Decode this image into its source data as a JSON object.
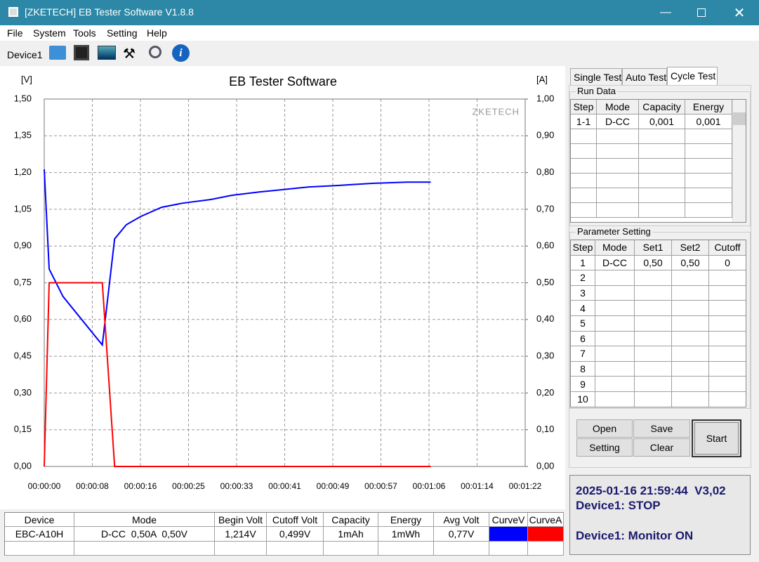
{
  "window": {
    "title": "[ZKETECH] EB Tester Software V1.8.8"
  },
  "menu": [
    "File",
    "System",
    "Tools",
    "Setting",
    "Help"
  ],
  "toolbar": {
    "device": "Device1"
  },
  "chart_data": {
    "type": "line",
    "title": "EB Tester Software",
    "ylabel": "[V]",
    "y2label": "[A]",
    "watermark": "ZKETECH",
    "xlim": [
      0,
      82
    ],
    "xticks": [
      {
        "value": 0,
        "label": "00:00:00"
      },
      {
        "value": 8.2,
        "label": "00:00:08"
      },
      {
        "value": 16.4,
        "label": "00:00:16"
      },
      {
        "value": 24.6,
        "label": "00:00:25"
      },
      {
        "value": 32.8,
        "label": "00:00:33"
      },
      {
        "value": 41,
        "label": "00:00:41"
      },
      {
        "value": 49.2,
        "label": "00:00:49"
      },
      {
        "value": 57.4,
        "label": "00:00:57"
      },
      {
        "value": 65.6,
        "label": "00:01:06"
      },
      {
        "value": 73.8,
        "label": "00:01:14"
      },
      {
        "value": 82,
        "label": "00:01:22"
      }
    ],
    "ylim": [
      0,
      1.5
    ],
    "yticks": [
      {
        "value": 0,
        "label": "0,00"
      },
      {
        "value": 0.15,
        "label": "0,15"
      },
      {
        "value": 0.3,
        "label": "0,30"
      },
      {
        "value": 0.45,
        "label": "0,45"
      },
      {
        "value": 0.6,
        "label": "0,60"
      },
      {
        "value": 0.75,
        "label": "0,75"
      },
      {
        "value": 0.9,
        "label": "0,90"
      },
      {
        "value": 1.05,
        "label": "1,05"
      },
      {
        "value": 1.2,
        "label": "1,20"
      },
      {
        "value": 1.35,
        "label": "1,35"
      },
      {
        "value": 1.5,
        "label": "1,50"
      }
    ],
    "y2lim": [
      0,
      1
    ],
    "y2ticks": [
      {
        "value": 0,
        "label": "0,00"
      },
      {
        "value": 0.1,
        "label": "0,10"
      },
      {
        "value": 0.2,
        "label": "0,20"
      },
      {
        "value": 0.3,
        "label": "0,30"
      },
      {
        "value": 0.4,
        "label": "0,40"
      },
      {
        "value": 0.5,
        "label": "0,50"
      },
      {
        "value": 0.6,
        "label": "0,60"
      },
      {
        "value": 0.7,
        "label": "0,70"
      },
      {
        "value": 0.8,
        "label": "0,80"
      },
      {
        "value": 0.9,
        "label": "0,90"
      },
      {
        "value": 1,
        "label": "1,00"
      }
    ],
    "grid": true,
    "series": [
      {
        "color": "#0000ff",
        "x": [
          0,
          0.84,
          3.2,
          9.9,
          12,
          14,
          16.4,
          20,
          23.6,
          28.4,
          32,
          36.8,
          45.1,
          49.9,
          55.9,
          61.9,
          65.9
        ],
        "values": [
          1.213,
          0.806,
          0.694,
          0.496,
          0.929,
          0.987,
          1.02,
          1.058,
          1.075,
          1.09,
          1.107,
          1.121,
          1.141,
          1.147,
          1.156,
          1.161,
          1.161
        ]
      },
      {
        "color": "#ff0000",
        "axis": "y2",
        "x": [
          0,
          0.84,
          9.9,
          12,
          65.9
        ],
        "values": [
          0,
          0.5,
          0.5,
          0,
          0
        ]
      }
    ]
  },
  "results": {
    "headers": [
      "Device",
      "Mode",
      "Begin Volt",
      "Cutoff Volt",
      "Capacity",
      "Energy",
      "Avg Volt",
      "CurveV",
      "CurveA"
    ],
    "row": [
      "EBC-A10H",
      "D-CC  0,50A  0,50V",
      "1,214V",
      "0,499V",
      "1mAh",
      "1mWh",
      "0,77V"
    ]
  },
  "tabs": [
    "Single Test",
    "Auto Test",
    "Cycle Test"
  ],
  "run_data": {
    "title": "Run Data",
    "headers": [
      "Step",
      "Mode",
      "Capacity",
      "Energy"
    ],
    "rows": [
      [
        "1-1",
        "D-CC",
        "0,001",
        "0,001"
      ]
    ]
  },
  "parameter_setting": {
    "title": "Parameter Setting",
    "headers": [
      "Step",
      "Mode",
      "Set1",
      "Set2",
      "Cutoff"
    ],
    "rows": [
      [
        "1",
        "D-CC",
        "0,50",
        "0,50",
        "0"
      ],
      [
        "2"
      ],
      [
        "3"
      ],
      [
        "4"
      ],
      [
        "5"
      ],
      [
        "6"
      ],
      [
        "7"
      ],
      [
        "8"
      ],
      [
        "9"
      ],
      [
        "10"
      ]
    ]
  },
  "buttons": [
    "Open",
    "Save",
    "Setting",
    "Clear",
    "Start"
  ],
  "status": [
    "2025-01-16 21:59:44  V3,02",
    "Device1: STOP",
    "Device1: Monitor ON"
  ]
}
